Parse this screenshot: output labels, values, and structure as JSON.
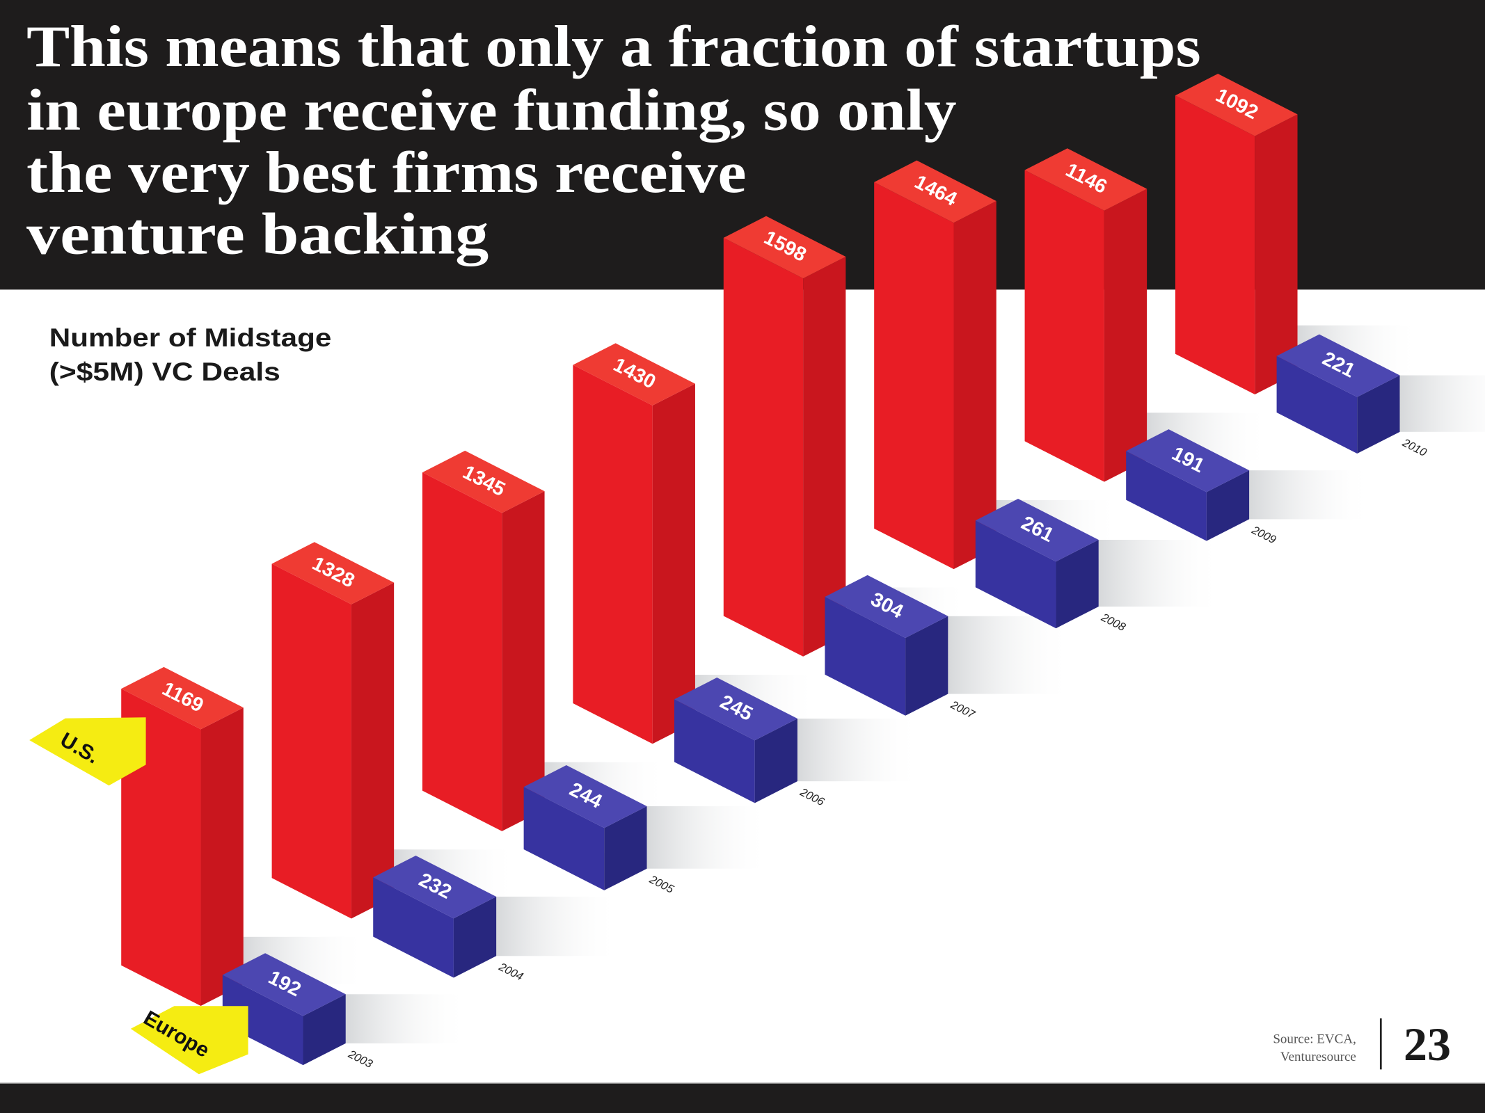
{
  "title_lines": [
    "This means that only a fraction of startups",
    "in europe receive funding, so only",
    "the very best firms receive",
    "venture backing"
  ],
  "subtitle_lines": [
    "Number of Midstage",
    "(>$5M) VC Deals"
  ],
  "legend": {
    "us": "U.S.",
    "europe": "Europe"
  },
  "source_lines": [
    "Source: EVCA,",
    "Venturesource"
  ],
  "page_number": "23",
  "colors": {
    "us_front": "#e81d25",
    "us_side": "#c9161e",
    "us_top": "#ef3b33",
    "eu_front": "#3733a0",
    "eu_side": "#28277f",
    "eu_top": "#4c47b1",
    "tag": "#f5ec12",
    "header": "#1e1c1c"
  },
  "chart_data": {
    "type": "bar",
    "title": "Number of Midstage (>$5M) VC Deals",
    "categories": [
      "2003",
      "2004",
      "2005",
      "2006",
      "2007",
      "2008",
      "2009",
      "2010"
    ],
    "series": [
      {
        "name": "U.S.",
        "values": [
          1169,
          1328,
          1345,
          1430,
          1598,
          1464,
          1146,
          1092
        ]
      },
      {
        "name": "Europe",
        "values": [
          192,
          232,
          244,
          245,
          304,
          261,
          191,
          221
        ]
      }
    ],
    "xlabel": "",
    "ylabel": "",
    "style": "3d-isometric"
  }
}
